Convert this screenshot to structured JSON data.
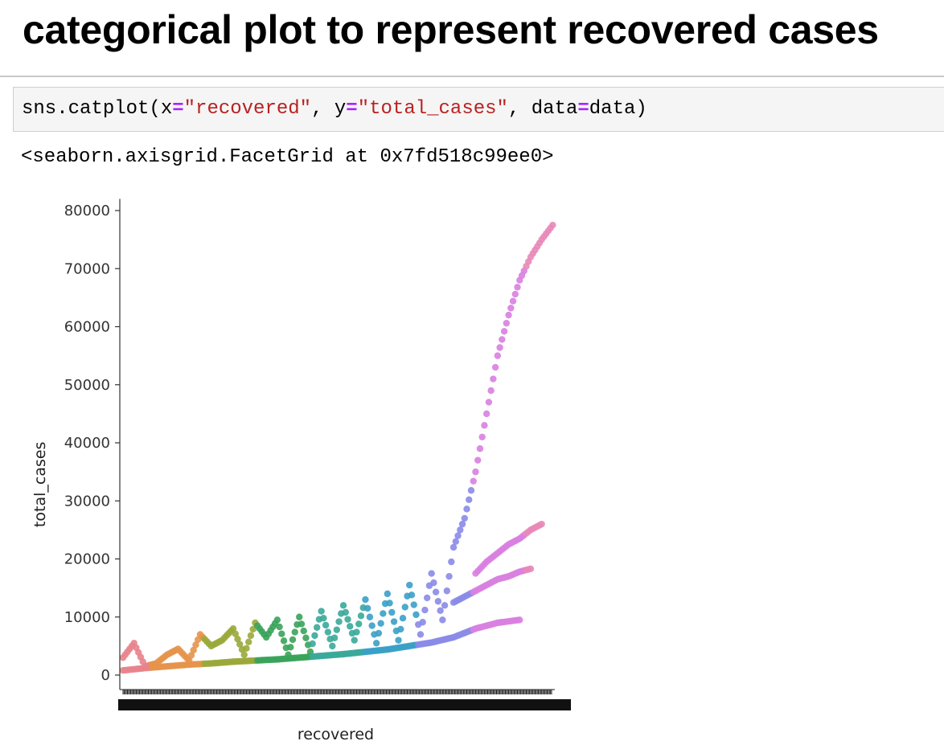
{
  "heading": "categorical plot to represent recovered cases",
  "code": {
    "prefix": "sns.catplot(",
    "kw_x": "x",
    "eq1": "=",
    "str_x": "\"recovered\"",
    "sep1": ", ",
    "kw_y": "y",
    "eq2": "=",
    "str_y": "\"total_cases\"",
    "sep2": ", ",
    "kw_data": "data",
    "eq3": "=",
    "arg_data": "data",
    "suffix": ")"
  },
  "output_text": "<seaborn.axisgrid.FacetGrid at 0x7fd518c99ee0>",
  "chart_data": {
    "type": "scatter",
    "title": "",
    "xlabel": "recovered",
    "ylabel": "total_cases",
    "ylim": [
      -2500,
      82000
    ],
    "yticks": [
      0,
      10000,
      20000,
      30000,
      40000,
      50000,
      60000,
      70000,
      80000
    ],
    "x_categories_count": 390,
    "x_tick_labels_illegible": true,
    "grid": false,
    "legend": "none",
    "palette": "husl",
    "colors": [
      "#e8838c",
      "#e6934a",
      "#9aa83a",
      "#3aa35a",
      "#3aa89a",
      "#3aa0c8",
      "#8a8ae8",
      "#d87fe0",
      "#e888b8"
    ],
    "series": [
      {
        "name": "",
        "x": [
          0,
          10,
          20,
          30,
          40,
          50,
          60,
          70,
          80,
          90,
          100,
          110,
          120,
          130,
          140,
          150,
          160,
          170,
          180,
          190,
          200,
          210,
          220,
          230,
          240,
          250,
          260,
          270,
          280,
          290,
          300,
          310,
          320,
          330,
          340,
          350,
          360,
          370,
          380,
          390
        ],
        "y": [
          3000,
          5500,
          1500,
          2000,
          3500,
          4500,
          2500,
          7000,
          5000,
          6000,
          8000,
          3500,
          9000,
          6500,
          9500,
          3500,
          10000,
          4000,
          11000,
          5000,
          12000,
          6000,
          13000,
          5500,
          14000,
          6000,
          15500,
          7000,
          17500,
          9500,
          22000,
          27000,
          35000,
          45000,
          55000,
          62000,
          68000,
          72000,
          75000,
          77500
        ]
      },
      {
        "name": "",
        "x": [
          0,
          20,
          40,
          60,
          80,
          100,
          120,
          140,
          160,
          180,
          200,
          220,
          240,
          260,
          280,
          300,
          320,
          340,
          360
        ],
        "y": [
          800,
          1200,
          1500,
          1800,
          2000,
          2300,
          2500,
          2700,
          3000,
          3300,
          3600,
          4000,
          4400,
          5000,
          5600,
          6500,
          8000,
          9000,
          9500
        ]
      },
      {
        "name": "",
        "x": [
          300,
          310,
          320,
          330,
          340,
          350,
          360,
          370
        ],
        "y": [
          12500,
          13500,
          14500,
          15500,
          16500,
          17000,
          17800,
          18300
        ]
      },
      {
        "name": "",
        "x": [
          320,
          330,
          340,
          350,
          360,
          370,
          380
        ],
        "y": [
          17500,
          19500,
          21000,
          22500,
          23500,
          25000,
          26000
        ]
      }
    ]
  }
}
